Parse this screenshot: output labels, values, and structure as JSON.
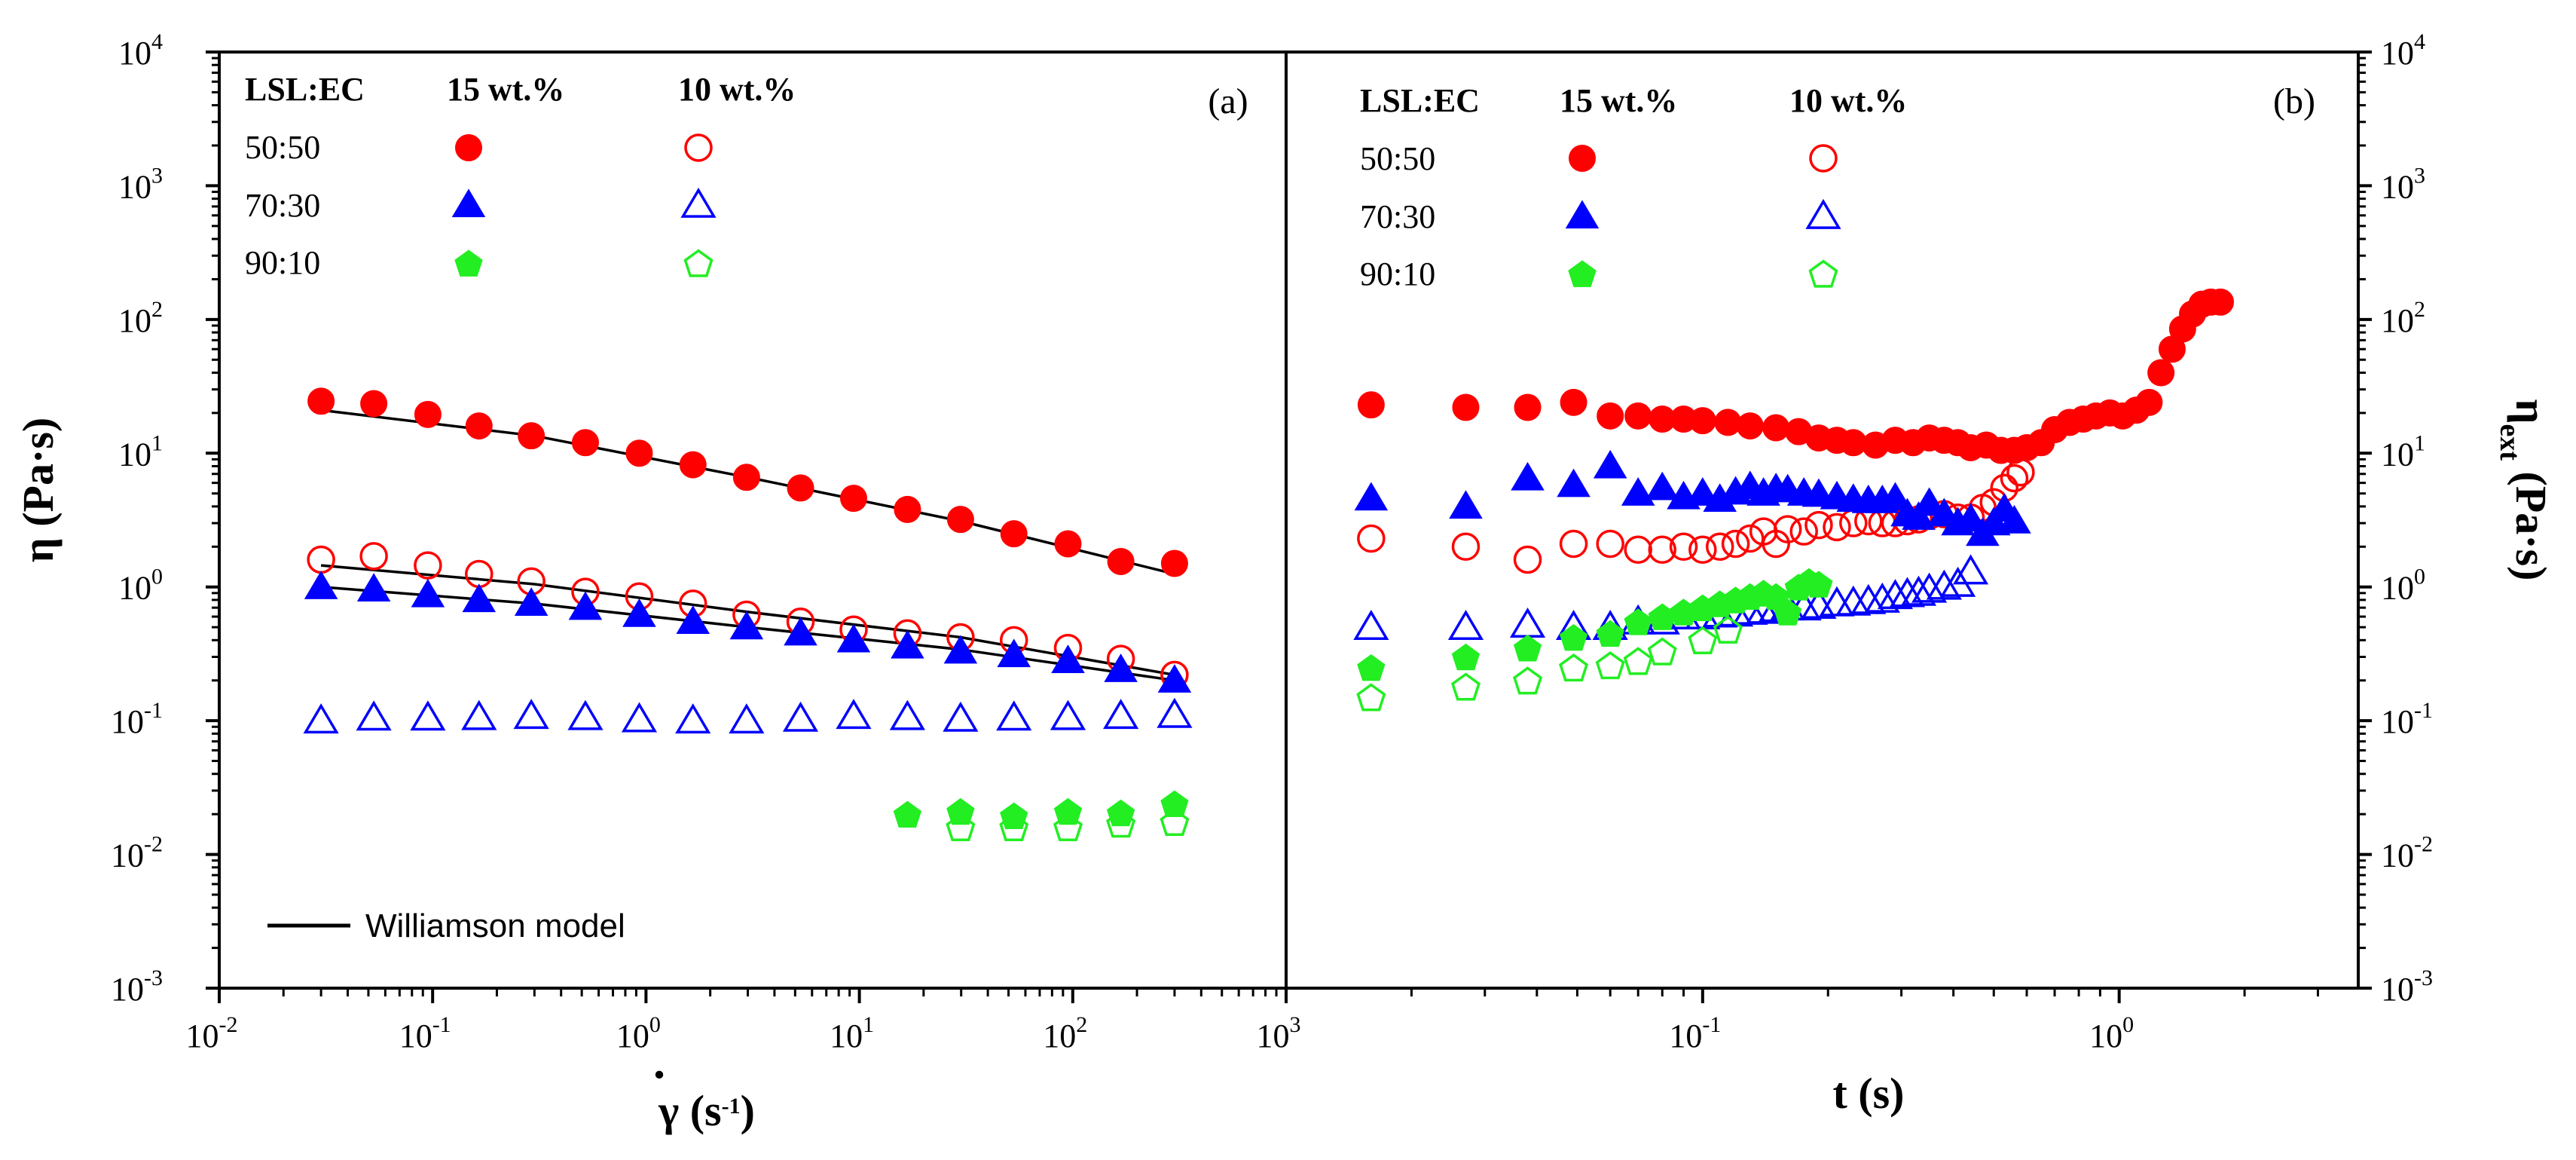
{
  "chart_data": [
    {
      "panel_label": "(a)",
      "type": "scatter",
      "xscale": "log",
      "yscale": "log",
      "xlim_exp": [
        -2,
        3
      ],
      "ylim_exp": [
        -3,
        4
      ],
      "x_tick_exponents": [
        "-2",
        "-1",
        "0",
        "1",
        "2",
        "3"
      ],
      "y_tick_exponents": [
        "-3",
        "-2",
        "-1",
        "0",
        "1",
        "2",
        "3",
        "4"
      ],
      "tick_base": "10",
      "xlabel_symbol": "γ",
      "xlabel_dot": "·",
      "xlabel_unit_open": " (s",
      "xlabel_unit_exp": "-1",
      "xlabel_unit_close": ")",
      "ylabel": "η (Pa·s)",
      "legend": {
        "header": "LSL:EC",
        "col1": "15 wt.%",
        "col2": "10 wt.%",
        "rows": [
          "50:50",
          "70:30",
          "90:10"
        ]
      },
      "fit_label": "Williamson model",
      "series": [
        {
          "name": "50:50 15 wt.%",
          "color": "#ff0000",
          "marker": "circle",
          "filled": true,
          "x": [
            0.03,
            0.053,
            0.095,
            0.165,
            0.29,
            0.52,
            0.93,
            1.66,
            2.96,
            5.3,
            9.4,
            16.8,
            29.8,
            53,
            95,
            168,
            300
          ],
          "y": [
            24.5,
            23.5,
            19.5,
            16,
            13.5,
            12,
            10,
            8.2,
            6.6,
            5.5,
            4.6,
            3.8,
            3.2,
            2.5,
            2.1,
            1.55,
            1.5
          ]
        },
        {
          "name": "50:50 10 wt.%",
          "color": "#ff0000",
          "marker": "circle",
          "filled": false,
          "x": [
            0.03,
            0.053,
            0.095,
            0.165,
            0.29,
            0.52,
            0.93,
            1.66,
            2.96,
            5.3,
            9.4,
            16.8,
            29.8,
            53,
            95,
            168,
            300
          ],
          "y": [
            1.6,
            1.7,
            1.45,
            1.25,
            1.1,
            0.92,
            0.85,
            0.75,
            0.62,
            0.55,
            0.48,
            0.45,
            0.42,
            0.4,
            0.35,
            0.29,
            0.22
          ]
        },
        {
          "name": "70:30 15 wt.%",
          "color": "#0000ff",
          "marker": "triangle",
          "filled": true,
          "x": [
            0.03,
            0.053,
            0.095,
            0.165,
            0.29,
            0.52,
            0.93,
            1.66,
            2.96,
            5.3,
            9.4,
            16.8,
            29.8,
            53,
            95,
            168,
            300
          ],
          "y": [
            1.0,
            0.96,
            0.87,
            0.8,
            0.75,
            0.7,
            0.62,
            0.55,
            0.5,
            0.45,
            0.4,
            0.36,
            0.33,
            0.31,
            0.28,
            0.24,
            0.2
          ]
        },
        {
          "name": "70:30 10 wt.%",
          "color": "#0000ff",
          "marker": "triangle",
          "filled": false,
          "x": [
            0.03,
            0.053,
            0.095,
            0.165,
            0.29,
            0.52,
            0.93,
            1.66,
            2.96,
            5.3,
            9.4,
            16.8,
            29.8,
            53,
            95,
            168,
            300
          ],
          "y": [
            0.1,
            0.105,
            0.105,
            0.106,
            0.108,
            0.106,
            0.102,
            0.1,
            0.1,
            0.103,
            0.108,
            0.106,
            0.103,
            0.105,
            0.106,
            0.108,
            0.11
          ]
        },
        {
          "name": "90:10 15 wt.%",
          "color": "#22ee22",
          "marker": "pentagon",
          "filled": true,
          "x": [
            16.8,
            29.8,
            53,
            95,
            168,
            300
          ],
          "y": [
            0.02,
            0.021,
            0.0195,
            0.021,
            0.0205,
            0.024
          ]
        },
        {
          "name": "90:10 10 wt.%",
          "color": "#22ee22",
          "marker": "pentagon",
          "filled": false,
          "x": [
            29.8,
            53,
            95,
            168,
            300
          ],
          "y": [
            0.016,
            0.016,
            0.016,
            0.017,
            0.0175
          ]
        }
      ],
      "fits": [
        {
          "series": "50:50 15 wt.%",
          "x": [
            0.03,
            0.3,
            3,
            30,
            300
          ],
          "y": [
            21,
            13.5,
            6.6,
            3.1,
            1.25
          ]
        },
        {
          "series": "50:50 10 wt.%",
          "x": [
            0.03,
            0.3,
            3,
            30,
            300
          ],
          "y": [
            1.45,
            1.05,
            0.65,
            0.42,
            0.22
          ]
        },
        {
          "series": "70:30 15 wt.%",
          "x": [
            0.03,
            0.3,
            3,
            30,
            300
          ],
          "y": [
            1.0,
            0.75,
            0.5,
            0.34,
            0.2
          ]
        }
      ]
    },
    {
      "panel_label": "(b)",
      "type": "scatter",
      "xscale": "log",
      "yscale": "log",
      "xlim_exp": [
        -2,
        0.574
      ],
      "ylim_exp": [
        -3,
        4
      ],
      "x_tick_exponents": [
        "-1",
        "0"
      ],
      "y_tick_exponents": [
        "-3",
        "-2",
        "-1",
        "0",
        "1",
        "2",
        "3",
        "4"
      ],
      "tick_base": "10",
      "xlabel": "t (s)",
      "ylabel_main": "η",
      "ylabel_sub": "ext",
      "ylabel_unit": " (Pa·s)",
      "legend": {
        "header": "LSL:EC",
        "col1": "15 wt.%",
        "col2": "10 wt.%",
        "rows": [
          "50:50",
          "70:30",
          "90:10"
        ]
      },
      "series": [
        {
          "name": "50:50 15 wt.%",
          "color": "#ff0000",
          "marker": "circle",
          "filled": true,
          "x": [
            0.016,
            0.027,
            0.038,
            0.049,
            0.06,
            0.07,
            0.08,
            0.09,
            0.1,
            0.115,
            0.13,
            0.15,
            0.17,
            0.19,
            0.21,
            0.23,
            0.26,
            0.29,
            0.32,
            0.35,
            0.38,
            0.41,
            0.44,
            0.48,
            0.52,
            0.56,
            0.6,
            0.65,
            0.7,
            0.76,
            0.82,
            0.88,
            0.95,
            1.02,
            1.1,
            1.18,
            1.26,
            1.34,
            1.42,
            1.5,
            1.58,
            1.66,
            1.75
          ],
          "y": [
            23,
            22,
            22,
            24,
            19,
            19,
            18,
            18,
            17.5,
            17,
            16,
            15.5,
            14.5,
            13,
            12.5,
            12,
            11.5,
            12.5,
            12,
            13,
            12.5,
            12,
            11,
            11.5,
            10.5,
            10.5,
            11,
            12,
            15,
            17,
            18,
            19,
            20,
            19,
            21,
            24,
            40,
            60,
            85,
            110,
            130,
            135,
            135
          ]
        },
        {
          "name": "50:50 10 wt.%",
          "color": "#ff0000",
          "marker": "circle",
          "filled": false,
          "x": [
            0.016,
            0.027,
            0.038,
            0.049,
            0.06,
            0.07,
            0.08,
            0.09,
            0.1,
            0.11,
            0.12,
            0.13,
            0.14,
            0.15,
            0.16,
            0.175,
            0.19,
            0.21,
            0.23,
            0.25,
            0.27,
            0.29,
            0.31,
            0.33,
            0.35,
            0.38,
            0.41,
            0.44,
            0.47,
            0.5,
            0.53,
            0.56,
            0.58
          ],
          "y": [
            2.3,
            2.0,
            1.6,
            2.1,
            2.1,
            1.9,
            1.9,
            2.0,
            1.9,
            2.0,
            2.1,
            2.3,
            2.6,
            2.1,
            2.7,
            2.6,
            2.9,
            2.8,
            3.0,
            3.1,
            3.0,
            3.0,
            3.1,
            3.2,
            3.4,
            3.5,
            3.3,
            3.3,
            3.9,
            4.3,
            5.5,
            6.5,
            7.2
          ]
        },
        {
          "name": "70:30 15 wt.%",
          "color": "#0000ff",
          "marker": "triangle",
          "filled": true,
          "x": [
            0.016,
            0.027,
            0.038,
            0.049,
            0.06,
            0.07,
            0.08,
            0.09,
            0.1,
            0.11,
            0.12,
            0.13,
            0.14,
            0.15,
            0.16,
            0.175,
            0.19,
            0.21,
            0.23,
            0.25,
            0.27,
            0.29,
            0.31,
            0.33,
            0.35,
            0.38,
            0.41,
            0.44,
            0.47,
            0.5,
            0.53,
            0.56
          ],
          "y": [
            4.6,
            4.0,
            6.5,
            5.8,
            8.0,
            5.0,
            5.5,
            4.7,
            5.0,
            4.5,
            5.1,
            5.6,
            5.0,
            5.4,
            5.3,
            5.0,
            4.9,
            4.7,
            4.5,
            4.4,
            4.4,
            4.6,
            3.5,
            3.3,
            4.2,
            3.5,
            3.0,
            3.2,
            2.5,
            3.0,
            3.8,
            3.1
          ]
        },
        {
          "name": "70:30 10 wt.%",
          "color": "#0000ff",
          "marker": "triangle",
          "filled": false,
          "x": [
            0.016,
            0.027,
            0.038,
            0.049,
            0.06,
            0.07,
            0.08,
            0.09,
            0.1,
            0.11,
            0.12,
            0.13,
            0.14,
            0.15,
            0.16,
            0.175,
            0.19,
            0.21,
            0.23,
            0.25,
            0.27,
            0.29,
            0.31,
            0.33,
            0.35,
            0.38,
            0.41,
            0.44
          ],
          "y": [
            0.5,
            0.5,
            0.52,
            0.5,
            0.5,
            0.55,
            0.55,
            0.6,
            0.6,
            0.62,
            0.63,
            0.65,
            0.66,
            0.68,
            0.7,
            0.7,
            0.72,
            0.75,
            0.76,
            0.78,
            0.8,
            0.85,
            0.88,
            0.9,
            0.95,
            1.0,
            1.05,
            1.3
          ]
        },
        {
          "name": "90:10 15 wt.%",
          "color": "#22ee22",
          "marker": "pentagon",
          "filled": true,
          "x": [
            0.016,
            0.027,
            0.038,
            0.049,
            0.06,
            0.07,
            0.08,
            0.09,
            0.1,
            0.11,
            0.12,
            0.13,
            0.14,
            0.15,
            0.16,
            0.17,
            0.18,
            0.19
          ],
          "y": [
            0.25,
            0.3,
            0.35,
            0.42,
            0.45,
            0.55,
            0.6,
            0.65,
            0.7,
            0.75,
            0.8,
            0.85,
            0.9,
            0.85,
            0.65,
            1.0,
            1.1,
            1.05
          ]
        },
        {
          "name": "90:10 10 wt.%",
          "color": "#22ee22",
          "marker": "pentagon",
          "filled": false,
          "x": [
            0.016,
            0.027,
            0.038,
            0.049,
            0.06,
            0.07,
            0.08,
            0.1,
            0.115
          ],
          "y": [
            0.15,
            0.18,
            0.2,
            0.25,
            0.26,
            0.28,
            0.33,
            0.4,
            0.48
          ]
        }
      ]
    }
  ]
}
